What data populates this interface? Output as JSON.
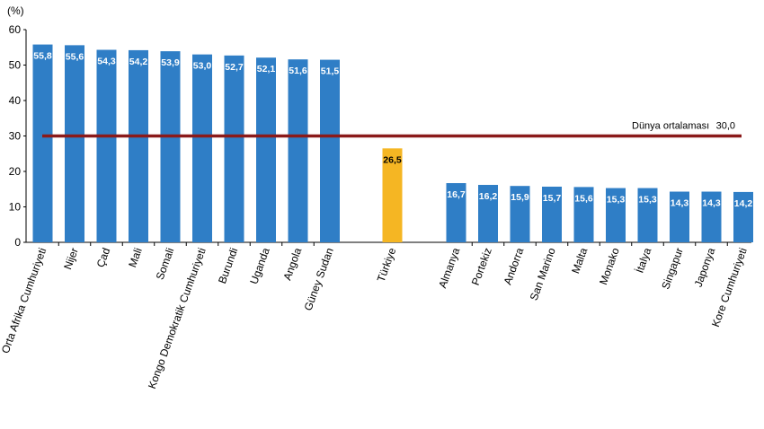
{
  "chart_data": {
    "type": "bar",
    "ylabel": "(%)",
    "ylim": [
      0,
      60
    ],
    "yticks": [
      "0",
      "10",
      "20",
      "30",
      "40",
      "50",
      "60"
    ],
    "categories": [
      "Orta Afrika Cumhuriyeti",
      "Nijer",
      "Çad",
      "Mali",
      "Somali",
      "Kongo Demokratik Cumhuriyeti",
      "Burundi",
      "Uganda",
      "Angola",
      "Güney Sudan",
      "Türkiye",
      "Almanya",
      "Portekiz",
      "Andorra",
      "San Marino",
      "Malta",
      "Monako",
      "İtalya",
      "Singapur",
      "Japonya",
      "Kore Cumhuriyeti"
    ],
    "values": [
      55.8,
      55.6,
      54.3,
      54.2,
      53.9,
      53.0,
      52.7,
      52.1,
      51.6,
      51.5,
      26.5,
      16.7,
      16.2,
      15.9,
      15.7,
      15.6,
      15.3,
      15.3,
      14.3,
      14.3,
      14.2
    ],
    "value_labels": [
      "55,8",
      "55,6",
      "54,3",
      "54,2",
      "53,9",
      "53,0",
      "52,7",
      "52,1",
      "51,6",
      "51,5",
      "26,5",
      "16,7",
      "16,2",
      "15,9",
      "15,7",
      "15,6",
      "15,3",
      "15,3",
      "14,3",
      "14,3",
      "14,2"
    ],
    "highlight": "Türkiye",
    "colors": {
      "bar": "#2f7ec6",
      "highlight": "#f5b623",
      "reference_line": "#8b1a1a"
    },
    "reference_line": {
      "label": "Dünya ortalaması",
      "value": 30.0,
      "value_label": "30,0"
    },
    "grid": false,
    "legend": "none"
  }
}
